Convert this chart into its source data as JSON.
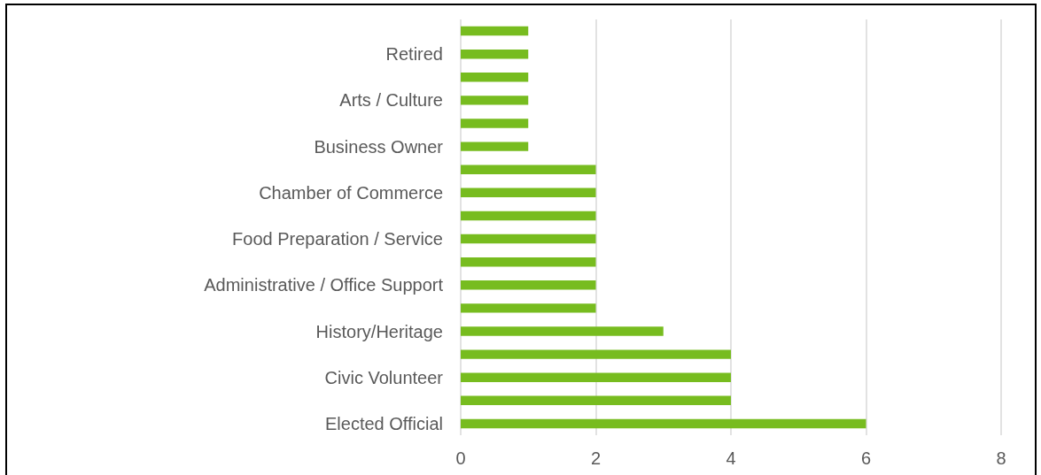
{
  "chart_data": {
    "type": "bar",
    "orientation": "horizontal",
    "categories": [
      null,
      "Retired",
      null,
      "Arts / Culture",
      null,
      "Business Owner",
      null,
      "Chamber of Commerce",
      null,
      "Food Preparation / Service",
      null,
      "Administrative / Office Support",
      null,
      "History/Heritage",
      null,
      "Civic Volunteer",
      null,
      "Elected Official"
    ],
    "values": [
      1,
      1,
      1,
      1,
      1,
      1,
      2,
      2,
      2,
      2,
      2,
      2,
      2,
      3,
      4,
      4,
      4,
      6
    ],
    "color": "#77bc1f",
    "xlim": [
      0,
      8
    ],
    "xticks": [
      0,
      2,
      4,
      6,
      8
    ],
    "grid": "x"
  }
}
